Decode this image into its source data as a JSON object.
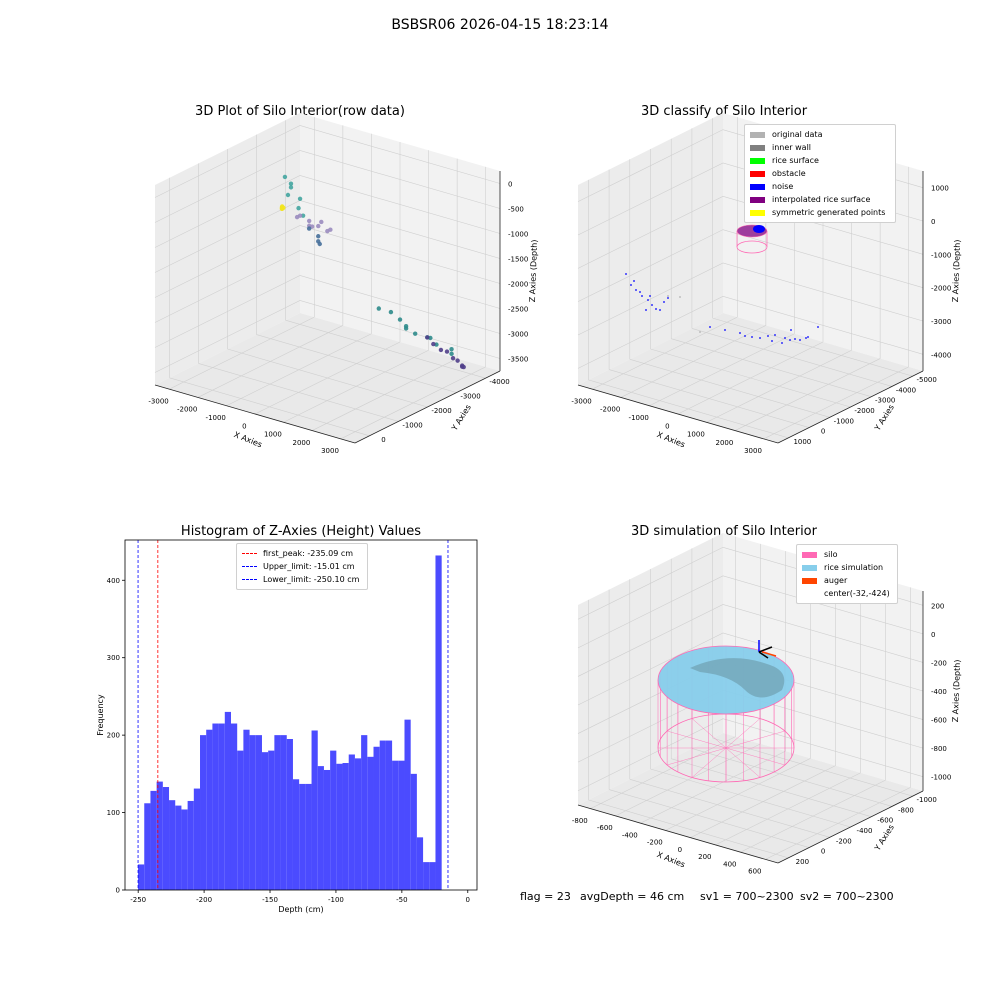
{
  "suptitle": "BSBSR06 2026-04-15 18:23:14",
  "chart_data": [
    {
      "type": "scatter",
      "projection": "3d",
      "title": "3D Plot of Silo Interior(row data)",
      "xlabel": "X Axies",
      "ylabel": "Y Axies",
      "zlabel": "Z Axies (Depth)",
      "x_ticks": [
        "-3000",
        "-2000",
        "-1000",
        "0",
        "1000",
        "2000",
        "3000"
      ],
      "y_ticks": [
        "0",
        "-1000",
        "-2000",
        "-3000",
        "-4000"
      ],
      "z_ticks": [
        "0",
        "-500",
        "-1000",
        "-1500",
        "-2000",
        "-2500",
        "-3000",
        "-3500"
      ],
      "xlim": [
        -3300,
        3300
      ],
      "ylim": [
        -4300,
        500
      ],
      "zlim": [
        -3800,
        250
      ],
      "grid": true,
      "clusters": [
        {
          "name": "",
          "color": "#f2e41e",
          "points": [
            [
              -32,
              -424,
              100
            ],
            [
              -10,
              -400,
              80
            ],
            [
              -50,
              -450,
              60
            ],
            [
              -20,
              -420,
              120
            ],
            [
              0,
              -440,
              90
            ]
          ]
        },
        {
          "name": "",
          "color": "#44a5a0",
          "points": [
            [
              -2900,
              -3400,
              -700
            ],
            [
              -2800,
              -3500,
              -850
            ],
            [
              -2700,
              -3300,
              -1000
            ],
            [
              -2600,
              -3600,
              -1150
            ],
            [
              -2750,
              -3450,
              -900
            ],
            [
              -2550,
              -3500,
              -1300
            ],
            [
              -2450,
              -3550,
              -1450
            ]
          ]
        },
        {
          "name": "",
          "color": "#9a8cbf",
          "points": [
            [
              -2200,
              -3200,
              -1300
            ],
            [
              -2000,
              -3300,
              -1400
            ],
            [
              -1800,
              -3400,
              -1500
            ],
            [
              -1600,
              -3300,
              -1350
            ],
            [
              -1900,
              -3200,
              -1450
            ],
            [
              -1500,
              -3500,
              -1550
            ],
            [
              -2100,
              -3000,
              -1250
            ],
            [
              -1700,
              -3100,
              -1400
            ],
            [
              -1400,
              -3300,
              -1500
            ]
          ]
        },
        {
          "name": "",
          "color": "#466f9a",
          "points": [
            [
              -2300,
              -3600,
              -1700
            ],
            [
              -2100,
              -3700,
              -1850
            ],
            [
              -1950,
              -3600,
              -1950
            ],
            [
              -2200,
              -3800,
              -2000
            ]
          ]
        },
        {
          "name": "",
          "color": "#2e8b8b",
          "points": [
            [
              -200,
              -4200,
              -3200
            ],
            [
              200,
              -4100,
              -3250
            ],
            [
              500,
              -4000,
              -3300
            ],
            [
              900,
              -3900,
              -3350
            ],
            [
              1200,
              -4000,
              -3400
            ],
            [
              1500,
              -3800,
              -3300
            ],
            [
              1800,
              -3700,
              -3350
            ],
            [
              2100,
              -3900,
              -3450
            ],
            [
              2400,
              -3600,
              -3400
            ],
            [
              -500,
              -4100,
              -3150
            ],
            [
              700,
              -3800,
              -3250
            ]
          ]
        },
        {
          "name": "",
          "color": "#503f8a",
          "points": [
            [
              1000,
              -4200,
              -3500
            ],
            [
              1300,
              -4100,
              -3550
            ],
            [
              1600,
              -4050,
              -3600
            ],
            [
              1900,
              -3950,
              -3550
            ],
            [
              2200,
              -3850,
              -3600
            ],
            [
              2500,
              -3700,
              -3550
            ],
            [
              2700,
              -3650,
              -3600
            ],
            [
              2850,
              -3500,
              -3550
            ],
            [
              3000,
              -3400,
              -3500
            ]
          ]
        }
      ]
    },
    {
      "type": "scatter",
      "projection": "3d",
      "title": "3D classify of Silo Interior",
      "xlabel": "X Axies",
      "ylabel": "Y Axies",
      "zlabel": "Z Axies (Depth)",
      "x_ticks": [
        "-3000",
        "-2000",
        "-1000",
        "0",
        "1000",
        "2000",
        "3000"
      ],
      "y_ticks": [
        "1000",
        "0",
        "-1000",
        "-2000",
        "-3000",
        "-4000",
        "-5000"
      ],
      "z_ticks": [
        "1000",
        "0",
        "-1000",
        "-2000",
        "-3000",
        "-4000"
      ],
      "xlim": [
        -3300,
        3300
      ],
      "ylim": [
        -5300,
        1300
      ],
      "zlim": [
        -4400,
        1200
      ],
      "grid": true,
      "legend_position": "top-right",
      "legend": [
        {
          "label": "original data",
          "color": "#b2b2b2"
        },
        {
          "label": "inner wall",
          "color": "#808080"
        },
        {
          "label": "rice surface",
          "color": "#00ff00"
        },
        {
          "label": "obstacle",
          "color": "#ff0000"
        },
        {
          "label": "noise",
          "color": "#0000ff"
        },
        {
          "label": "interpolated rice surface",
          "color": "#800080"
        },
        {
          "label": "symmetric generated points",
          "color": "#ffff00"
        }
      ]
    },
    {
      "type": "bar",
      "title": "Histogram of Z-Axies (Height) Values",
      "xlabel": "Depth (cm)",
      "ylabel": "Frequency",
      "xlim": [
        -260,
        7
      ],
      "ylim": [
        0,
        452
      ],
      "x_ticks": [
        -250,
        -200,
        -150,
        -100,
        -50,
        0
      ],
      "y_ticks": [
        0,
        100,
        200,
        300,
        400
      ],
      "bar_color": "#4b4bff",
      "bin_start": -250.1,
      "bin_width": 4.7,
      "values": [
        33,
        112,
        128,
        140,
        133,
        116,
        109,
        104,
        115,
        131,
        200,
        207,
        215,
        215,
        230,
        215,
        180,
        207,
        200,
        200,
        178,
        180,
        200,
        200,
        195,
        143,
        137,
        137,
        206,
        160,
        155,
        180,
        163,
        164,
        175,
        170,
        200,
        172,
        185,
        193,
        193,
        167,
        167,
        220,
        150,
        68,
        36,
        36,
        432
      ],
      "vlines": [
        {
          "x": -235.09,
          "color": "#ff0000"
        },
        {
          "x": -15.01,
          "color": "#0000ff"
        },
        {
          "x": -250.1,
          "color": "#0000ff"
        }
      ],
      "legend_position": "top-center",
      "legend": [
        {
          "label": "first_peak: -235.09 cm",
          "color": "#ff0000"
        },
        {
          "label": "Upper_limit: -15.01 cm",
          "color": "#0000ff"
        },
        {
          "label": "Lower_limit: -250.10 cm",
          "color": "#0000ff"
        }
      ]
    },
    {
      "type": "surface",
      "projection": "3d",
      "title": "3D simulation of Silo Interior",
      "xlabel": "X Axies",
      "ylabel": "Y Axies",
      "zlabel": "Z Axies (Depth)",
      "x_ticks": [
        "-800",
        "-600",
        "-400",
        "-200",
        "0",
        "200",
        "400",
        "600"
      ],
      "y_ticks": [
        "200",
        "0",
        "-200",
        "-400",
        "-600",
        "-800",
        "-1000"
      ],
      "z_ticks": [
        "200",
        "0",
        "-200",
        "-400",
        "-600",
        "-800",
        "-1000"
      ],
      "grid": true,
      "legend_position": "top-right",
      "legend": [
        {
          "label": "silo",
          "color": "#ff69b4"
        },
        {
          "label": "rice simulation",
          "color": "#87ceeb"
        },
        {
          "label": "auger",
          "color": "#ff4500"
        },
        {
          "label": "center(-32,-424)",
          "color": ""
        }
      ]
    }
  ],
  "footer": {
    "flag": "flag = 23",
    "avg_depth": "avgDepth = 46 cm",
    "sv1": "sv1 = 700~2300",
    "sv2": "sv2 = 700~2300"
  }
}
